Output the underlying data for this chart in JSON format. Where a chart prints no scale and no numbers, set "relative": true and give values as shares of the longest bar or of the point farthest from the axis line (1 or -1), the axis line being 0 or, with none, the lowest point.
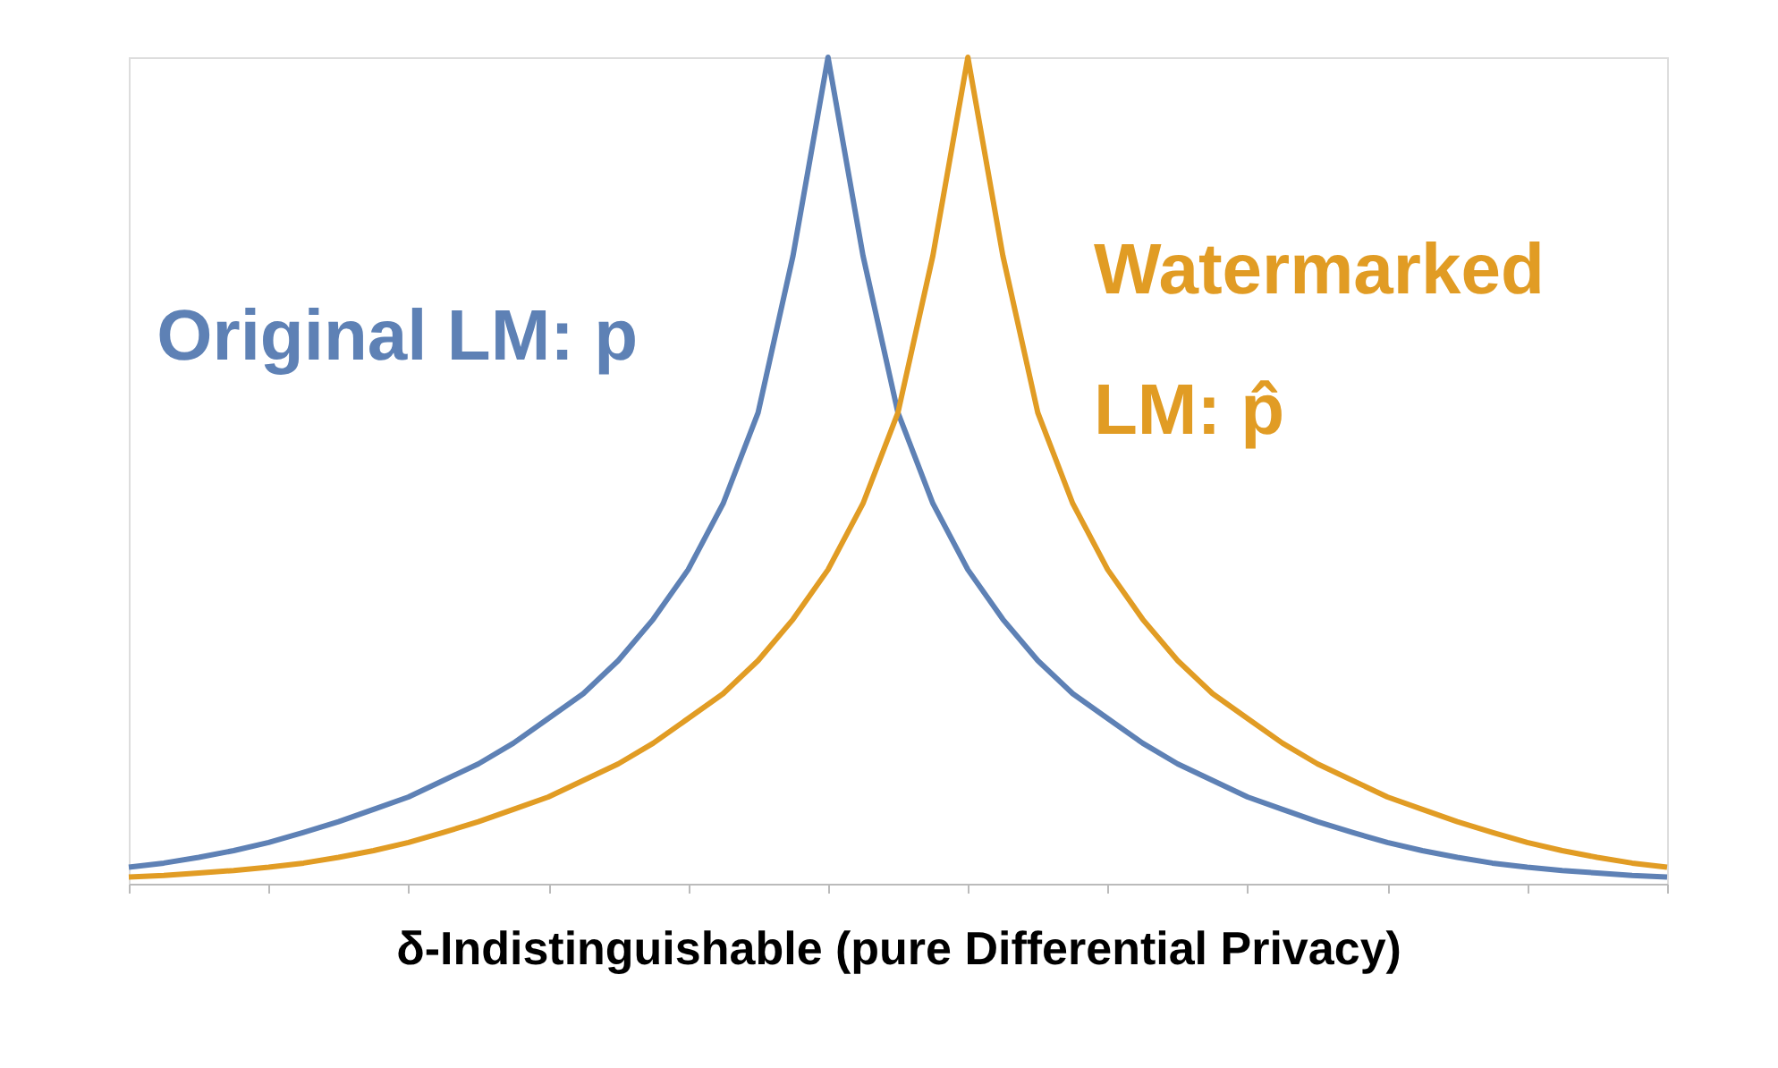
{
  "chart_data": {
    "type": "line",
    "relative": true,
    "xlabel": "δ-Indistinguishable (pure Differential Privacy)",
    "categories": [
      null,
      null,
      null,
      null,
      null,
      null,
      null,
      null,
      null,
      null,
      null,
      null,
      null,
      null,
      null,
      null,
      null,
      null,
      null,
      null,
      null,
      null,
      null,
      null,
      null,
      null,
      null,
      null,
      null,
      null,
      null,
      null,
      null,
      null,
      null,
      null,
      null,
      null,
      null,
      null,
      null,
      null,
      null,
      null,
      null
    ],
    "series": [
      {
        "name": "Original LM: p",
        "color": "#5e81b5",
        "values": [
          0.02,
          0.025,
          0.032,
          0.04,
          0.05,
          0.062,
          0.075,
          0.09,
          0.105,
          0.125,
          0.145,
          0.17,
          0.2,
          0.23,
          0.27,
          0.32,
          0.38,
          0.46,
          0.57,
          0.76,
          1,
          0.76,
          0.57,
          0.46,
          0.38,
          0.32,
          0.27,
          0.23,
          0.2,
          0.17,
          0.145,
          0.125,
          0.105,
          0.09,
          0.075,
          0.062,
          0.05,
          0.04,
          0.032,
          0.025,
          0.02,
          0.016,
          0.013,
          0.01,
          0.008
        ]
      },
      {
        "name": "Watermarked LM: p̂",
        "color": "#e19c24",
        "values": [
          0.008,
          0.01,
          0.013,
          0.016,
          0.02,
          0.025,
          0.032,
          0.04,
          0.05,
          0.062,
          0.075,
          0.09,
          0.105,
          0.125,
          0.145,
          0.17,
          0.2,
          0.23,
          0.27,
          0.32,
          0.38,
          0.46,
          0.57,
          0.76,
          1,
          0.76,
          0.57,
          0.46,
          0.38,
          0.32,
          0.27,
          0.23,
          0.2,
          0.17,
          0.145,
          0.125,
          0.105,
          0.09,
          0.075,
          0.062,
          0.05,
          0.04,
          0.032,
          0.025,
          0.02
        ]
      }
    ],
    "legend": false,
    "grid": false,
    "marker": "none",
    "line_style": "solid"
  }
}
